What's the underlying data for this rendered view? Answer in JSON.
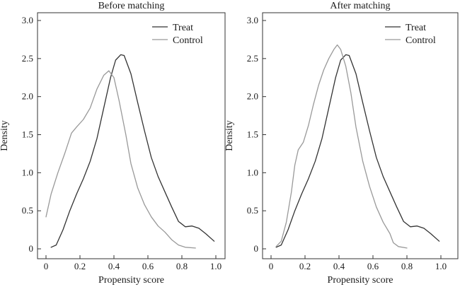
{
  "figure": {
    "ylabel": "Density",
    "xlabel": "Propensity score"
  },
  "chart_data": [
    {
      "type": "line",
      "title": "Before matching",
      "xlabel": "Propensity score",
      "ylabel": "Density",
      "xlim": [
        0,
        1
      ],
      "ylim": [
        0,
        3
      ],
      "xticks": [
        "0",
        "0.2",
        "0.4",
        "0.6",
        "0.8",
        "1.0"
      ],
      "yticks": [
        "0",
        "0.5",
        "1.0",
        "1.5",
        "2.0",
        "2.5",
        "3.0"
      ],
      "grid": false,
      "legend_position": "top-right",
      "series": [
        {
          "name": "Treat",
          "color": "#333333",
          "points": [
            [
              0.03,
              0.02
            ],
            [
              0.06,
              0.05
            ],
            [
              0.1,
              0.25
            ],
            [
              0.14,
              0.5
            ],
            [
              0.18,
              0.72
            ],
            [
              0.22,
              0.92
            ],
            [
              0.26,
              1.15
            ],
            [
              0.3,
              1.45
            ],
            [
              0.34,
              1.85
            ],
            [
              0.38,
              2.25
            ],
            [
              0.41,
              2.48
            ],
            [
              0.44,
              2.55
            ],
            [
              0.46,
              2.54
            ],
            [
              0.5,
              2.3
            ],
            [
              0.54,
              1.92
            ],
            [
              0.58,
              1.55
            ],
            [
              0.62,
              1.2
            ],
            [
              0.66,
              0.95
            ],
            [
              0.7,
              0.75
            ],
            [
              0.74,
              0.55
            ],
            [
              0.78,
              0.36
            ],
            [
              0.82,
              0.29
            ],
            [
              0.86,
              0.3
            ],
            [
              0.9,
              0.27
            ],
            [
              0.94,
              0.2
            ],
            [
              0.99,
              0.1
            ]
          ]
        },
        {
          "name": "Control",
          "color": "#999999",
          "points": [
            [
              0.0,
              0.42
            ],
            [
              0.03,
              0.72
            ],
            [
              0.07,
              1.0
            ],
            [
              0.11,
              1.25
            ],
            [
              0.15,
              1.52
            ],
            [
              0.18,
              1.6
            ],
            [
              0.22,
              1.7
            ],
            [
              0.26,
              1.85
            ],
            [
              0.3,
              2.1
            ],
            [
              0.34,
              2.28
            ],
            [
              0.37,
              2.34
            ],
            [
              0.4,
              2.25
            ],
            [
              0.43,
              1.95
            ],
            [
              0.47,
              1.5
            ],
            [
              0.5,
              1.12
            ],
            [
              0.54,
              0.8
            ],
            [
              0.58,
              0.58
            ],
            [
              0.62,
              0.42
            ],
            [
              0.66,
              0.3
            ],
            [
              0.7,
              0.22
            ],
            [
              0.74,
              0.12
            ],
            [
              0.78,
              0.05
            ],
            [
              0.82,
              0.02
            ],
            [
              0.88,
              0.01
            ]
          ]
        }
      ]
    },
    {
      "type": "line",
      "title": "After matching",
      "xlabel": "Propensity score",
      "ylabel": "Density",
      "xlim": [
        0,
        1
      ],
      "ylim": [
        0,
        3
      ],
      "xticks": [
        "0",
        "0.2",
        "0.4",
        "0.6",
        "0.8",
        "1.0"
      ],
      "yticks": [
        "0",
        "0.5",
        "1.0",
        "1.5",
        "2.0",
        "2.5",
        "3.0"
      ],
      "grid": false,
      "legend_position": "top-right",
      "series": [
        {
          "name": "Treat",
          "color": "#333333",
          "points": [
            [
              0.03,
              0.02
            ],
            [
              0.06,
              0.05
            ],
            [
              0.1,
              0.25
            ],
            [
              0.14,
              0.5
            ],
            [
              0.18,
              0.72
            ],
            [
              0.22,
              0.92
            ],
            [
              0.26,
              1.15
            ],
            [
              0.3,
              1.45
            ],
            [
              0.34,
              1.85
            ],
            [
              0.38,
              2.25
            ],
            [
              0.41,
              2.48
            ],
            [
              0.44,
              2.55
            ],
            [
              0.46,
              2.54
            ],
            [
              0.5,
              2.3
            ],
            [
              0.54,
              1.92
            ],
            [
              0.58,
              1.55
            ],
            [
              0.62,
              1.2
            ],
            [
              0.66,
              0.95
            ],
            [
              0.7,
              0.75
            ],
            [
              0.74,
              0.55
            ],
            [
              0.78,
              0.36
            ],
            [
              0.82,
              0.29
            ],
            [
              0.86,
              0.3
            ],
            [
              0.9,
              0.27
            ],
            [
              0.94,
              0.2
            ],
            [
              0.99,
              0.1
            ]
          ]
        },
        {
          "name": "Control",
          "color": "#999999",
          "points": [
            [
              0.03,
              0.03
            ],
            [
              0.06,
              0.1
            ],
            [
              0.09,
              0.35
            ],
            [
              0.12,
              0.75
            ],
            [
              0.14,
              1.1
            ],
            [
              0.16,
              1.3
            ],
            [
              0.19,
              1.4
            ],
            [
              0.22,
              1.62
            ],
            [
              0.25,
              1.9
            ],
            [
              0.28,
              2.15
            ],
            [
              0.31,
              2.35
            ],
            [
              0.34,
              2.5
            ],
            [
              0.37,
              2.62
            ],
            [
              0.39,
              2.68
            ],
            [
              0.41,
              2.62
            ],
            [
              0.44,
              2.4
            ],
            [
              0.47,
              2.05
            ],
            [
              0.5,
              1.6
            ],
            [
              0.54,
              1.15
            ],
            [
              0.58,
              0.82
            ],
            [
              0.62,
              0.55
            ],
            [
              0.66,
              0.35
            ],
            [
              0.7,
              0.2
            ],
            [
              0.72,
              0.08
            ],
            [
              0.75,
              0.03
            ],
            [
              0.8,
              0.01
            ]
          ]
        }
      ]
    }
  ]
}
